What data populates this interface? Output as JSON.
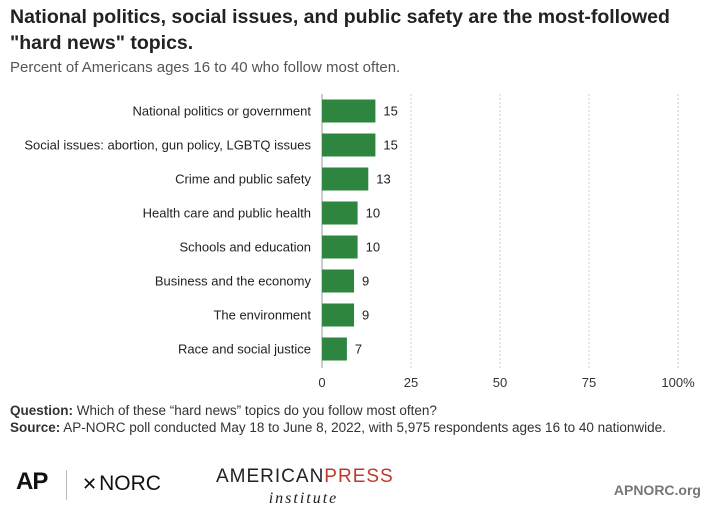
{
  "header": {
    "title": "National politics, social issues, and public safety are the most-followed \"hard news\" topics.",
    "subtitle": "Percent of Americans ages 16 to 40 who follow most often."
  },
  "chart_data": {
    "type": "bar",
    "orientation": "horizontal",
    "categories": [
      "National politics or government",
      "Social issues: abortion, gun policy, LGBTQ issues",
      "Crime and public safety",
      "Health care and public health",
      "Schools and education",
      "Business and the economy",
      "The environment",
      "Race and social justice"
    ],
    "values": [
      15,
      15,
      13,
      10,
      10,
      9,
      9,
      7
    ],
    "xlim": [
      0,
      100
    ],
    "ticks": [
      0,
      25,
      50,
      75,
      100
    ],
    "tick_labels": [
      "0",
      "25",
      "50",
      "75",
      "100%"
    ],
    "grid": true,
    "bar_color": "#2e8540"
  },
  "footnote": {
    "question_label": "Question:",
    "question_text": " Which of these “hard news” topics do you follow most often?",
    "source_label": "Source:",
    "source_text": " AP-NORC poll conducted May 18 to June 8, 2022, with 5,975 respondents ages 16 to 40 nationwide."
  },
  "logos": {
    "ap": "AP",
    "norc": "NORC",
    "api_top_1": "AMERICAN",
    "api_top_2": "PRESS",
    "api_bottom": "institute",
    "site": "APNORC.org"
  }
}
